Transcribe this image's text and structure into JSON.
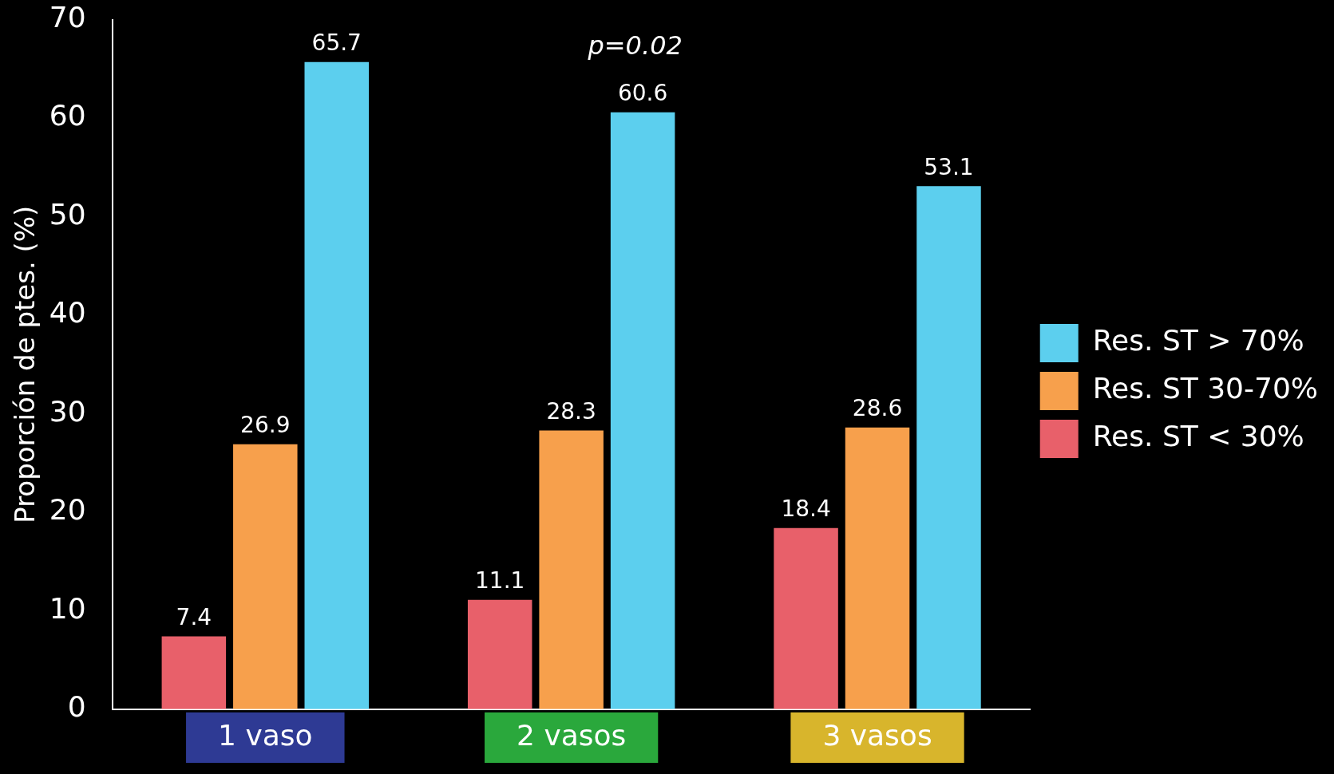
{
  "chart_data": {
    "type": "bar",
    "ylabel": "Proporción de ptes. (%)",
    "categories": [
      "1 vaso",
      "2 vasos",
      "3 vasos"
    ],
    "series": [
      {
        "name": "Res. ST < 30%",
        "color": "#e8606a",
        "values": [
          7.4,
          11.1,
          18.4
        ]
      },
      {
        "name": "Res. ST 30-70%",
        "color": "#f7a04c",
        "values": [
          26.9,
          28.3,
          28.6
        ]
      },
      {
        "name": "Res. ST > 70%",
        "color": "#5ccfee",
        "values": [
          65.7,
          60.6,
          53.1
        ]
      }
    ],
    "ylim": [
      0,
      70
    ],
    "yticks": [
      0,
      10,
      20,
      30,
      40,
      50,
      60,
      70
    ],
    "grid": false,
    "legend": "right",
    "data_labels": true,
    "annotations": [
      "p=0.02"
    ]
  }
}
